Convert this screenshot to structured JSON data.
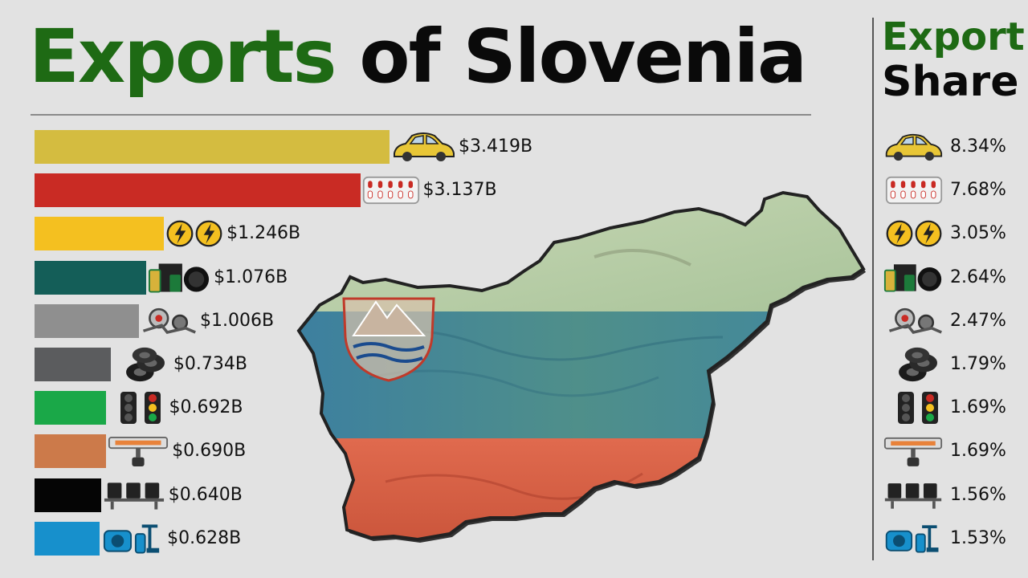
{
  "title": {
    "part1": "Exports",
    "part2": "of Slovenia"
  },
  "side_title": {
    "line1": "Export",
    "line2": "Share"
  },
  "colors": {
    "title_green": "#1e6a14",
    "flag_white": "#f4f4f4",
    "flag_blue": "#1a4b8e",
    "flag_red": "#d63a2a"
  },
  "chart_data": {
    "type": "bar",
    "orientation": "horizontal",
    "unit": "billion USD",
    "rows": [
      {
        "value": 3.419,
        "label": "$3.419B",
        "share": "8.34%",
        "color": "#d4bc40",
        "icon": "car-icon"
      },
      {
        "value": 3.137,
        "label": "$3.137B",
        "share": "7.68%",
        "color": "#c92b24",
        "icon": "pills-icon"
      },
      {
        "value": 1.246,
        "label": "$1.246B",
        "share": "3.05%",
        "color": "#f4c020",
        "icon": "electricity-icon"
      },
      {
        "value": 1.076,
        "label": "$1.076B",
        "share": "2.64%",
        "color": "#145e58",
        "icon": "oil-barrel-icon"
      },
      {
        "value": 1.006,
        "label": "$1.006B",
        "share": "2.47%",
        "color": "#8f8f8f",
        "icon": "auto-parts-icon"
      },
      {
        "value": 0.734,
        "label": "$0.734B",
        "share": "1.79%",
        "color": "#5b5c5e",
        "icon": "tires-icon"
      },
      {
        "value": 0.692,
        "label": "$0.692B",
        "share": "1.69%",
        "color": "#1aa848",
        "icon": "traffic-light-icon"
      },
      {
        "value": 0.69,
        "label": "$0.690B",
        "share": "1.69%",
        "color": "#cc7a4a",
        "icon": "heater-icon"
      },
      {
        "value": 0.64,
        "label": "$0.640B",
        "share": "1.56%",
        "color": "#050505",
        "icon": "seats-icon"
      },
      {
        "value": 0.628,
        "label": "$0.628B",
        "share": "1.53%",
        "color": "#1790cc",
        "icon": "pump-icon"
      }
    ]
  }
}
